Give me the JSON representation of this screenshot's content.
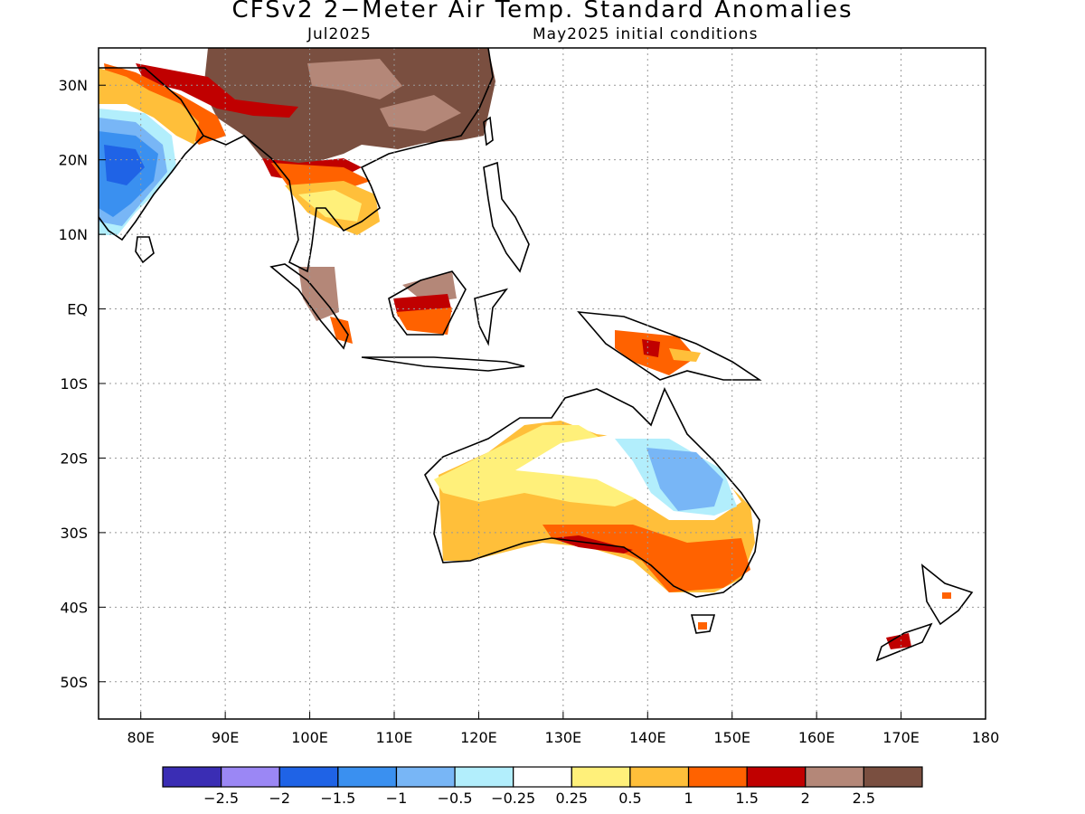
{
  "title": "CFSv2 2−Meter Air Temp. Standard Anomalies",
  "subtitle_left": "Jul2025",
  "subtitle_right": "May2025 initial conditions",
  "map": {
    "lon_range": [
      75,
      180
    ],
    "lat_range": [
      -55,
      35
    ],
    "lat_ticks": [
      {
        "value": 30,
        "label": "30N"
      },
      {
        "value": 20,
        "label": "20N"
      },
      {
        "value": 10,
        "label": "10N"
      },
      {
        "value": 0,
        "label": "EQ"
      },
      {
        "value": -10,
        "label": "10S"
      },
      {
        "value": -20,
        "label": "20S"
      },
      {
        "value": -30,
        "label": "30S"
      },
      {
        "value": -40,
        "label": "40S"
      },
      {
        "value": -50,
        "label": "50S"
      }
    ],
    "lon_ticks": [
      {
        "value": 80,
        "label": "80E"
      },
      {
        "value": 90,
        "label": "90E"
      },
      {
        "value": 100,
        "label": "100E"
      },
      {
        "value": 110,
        "label": "110E"
      },
      {
        "value": 120,
        "label": "120E"
      },
      {
        "value": 130,
        "label": "130E"
      },
      {
        "value": 140,
        "label": "140E"
      },
      {
        "value": 150,
        "label": "150E"
      },
      {
        "value": 160,
        "label": "160E"
      },
      {
        "value": 170,
        "label": "170E"
      },
      {
        "value": 180,
        "label": "180"
      }
    ],
    "grid": "dotted"
  },
  "colorbar": {
    "colors": [
      "#3a2db4",
      "#9b87f5",
      "#1f63e6",
      "#3a90f0",
      "#78b6f6",
      "#b2eefc",
      "#ffffff",
      "#fff07a",
      "#ffbf3a",
      "#ff6200",
      "#c00000",
      "#b48778",
      "#7a4f40"
    ],
    "labels": [
      "−2.5",
      "−2",
      "−1.5",
      "−1",
      "−0.5",
      "−0.25",
      "0.25",
      "0.5",
      "1",
      "1.5",
      "2",
      "2.5"
    ]
  }
}
